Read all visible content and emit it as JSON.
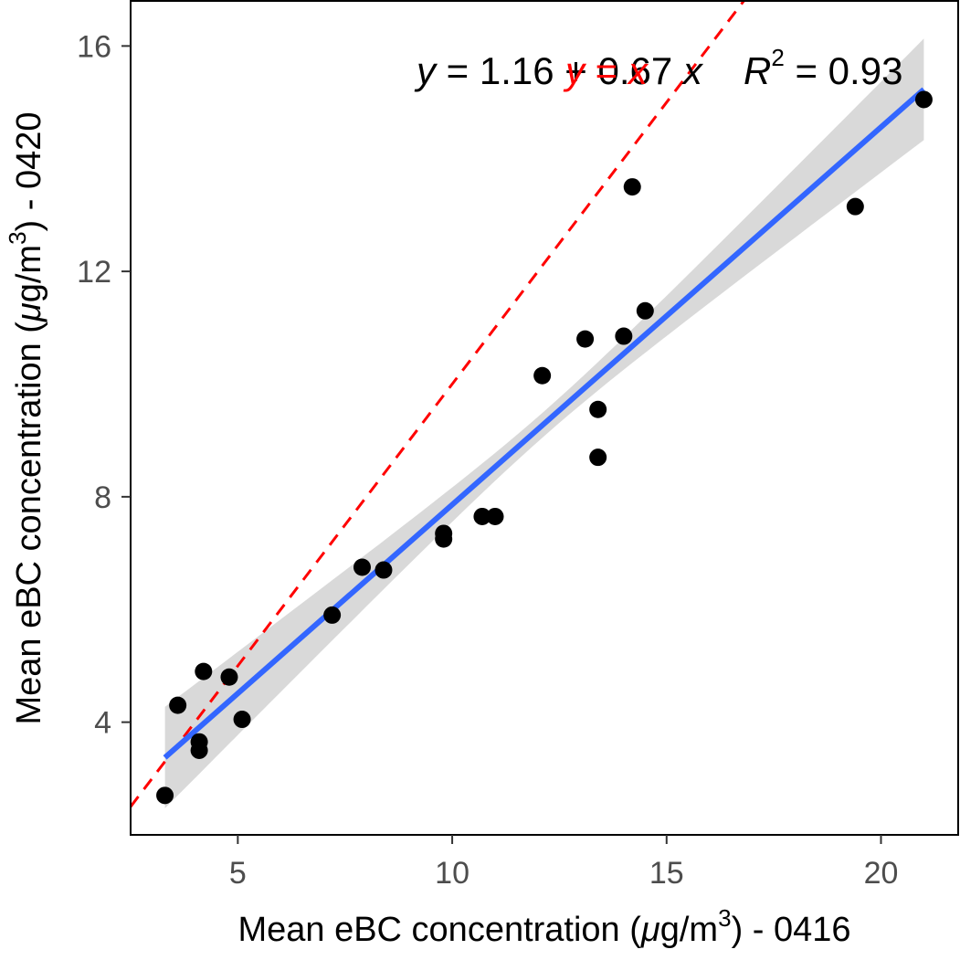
{
  "chart_data": {
    "type": "scatter",
    "title": "",
    "xlabel": {
      "pre": "Mean eBC concentration (",
      "mu": "μ",
      "unit": "g/m",
      "sup": "3",
      "post": ") - 0416"
    },
    "ylabel": {
      "pre": "Mean eBC concentration (",
      "mu": "μ",
      "unit": "g/m",
      "sup": "3",
      "post": ") - 0420"
    },
    "xlim": [
      2.5,
      21.8
    ],
    "ylim": [
      2.0,
      16.8
    ],
    "x_ticks": [
      5,
      10,
      15,
      20
    ],
    "y_ticks": [
      4,
      8,
      12,
      16
    ],
    "x": [
      3.3,
      3.6,
      4.1,
      4.1,
      4.2,
      4.8,
      5.1,
      7.2,
      7.9,
      8.4,
      9.8,
      9.8,
      10.7,
      11.0,
      12.1,
      13.1,
      13.4,
      13.4,
      14.0,
      14.2,
      14.5,
      19.4,
      21.0
    ],
    "y": [
      2.7,
      4.3,
      3.5,
      3.65,
      4.9,
      4.8,
      4.05,
      5.9,
      6.75,
      6.7,
      7.25,
      7.35,
      7.65,
      7.65,
      10.15,
      10.8,
      8.7,
      9.55,
      10.85,
      13.5,
      11.3,
      13.15,
      15.05
    ],
    "series": [
      {
        "type": "scatter",
        "color": "#000000"
      },
      {
        "type": "regression-line",
        "intercept": 1.16,
        "slope": 0.67,
        "x_range": [
          3.3,
          21.0
        ],
        "color": "#3366ff",
        "ci_color": "#d9d9d9",
        "ci_halfwidth_at_ends": 0.9,
        "ci_halfwidth_at_center": 0.22
      },
      {
        "type": "reference-line",
        "intercept": 0,
        "slope": 1,
        "style": "dashed",
        "color": "#ff0000"
      }
    ],
    "annotations": {
      "equation": {
        "y": "y",
        "eq1": " = 1.16 + 0.67 ",
        "x": "x"
      },
      "r2": {
        "R": "R",
        "sup": "2",
        "eq": " = 0.93"
      },
      "overlay": {
        "y": "y",
        "eq": " = ",
        "x": "x",
        "color": "#ff0000"
      }
    },
    "grid": false,
    "legend": "none"
  }
}
